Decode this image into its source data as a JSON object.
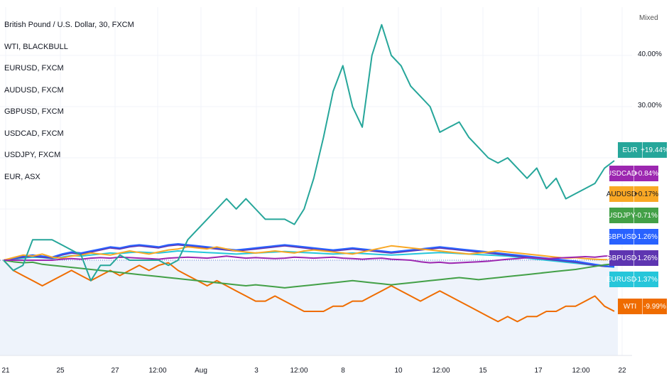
{
  "legend": [
    "British Pound / U.S. Dollar, 30, FXCM",
    "WTI, BLACKBULL",
    "EURUSD, FXCM",
    "AUDUSD, FXCM",
    "GBPUSD, FXCM",
    "USDCAD, FXCM",
    "USDJPY, FXCM",
    "EUR, ASX"
  ],
  "chart_data": {
    "type": "line",
    "scale_label": "Mixed",
    "y_ticks": [
      {
        "label": "40.00%",
        "value": 40
      },
      {
        "label": "30.00%",
        "value": 30
      }
    ],
    "x_ticks": [
      "21",
      "25",
      "27",
      "12:00",
      "Aug",
      "3",
      "12:00",
      "8",
      "10",
      "12:00",
      "15",
      "17",
      "12:00",
      "22"
    ],
    "series": [
      {
        "name": "EUR",
        "color": "#26a69a",
        "last_label": "+19.44%",
        "values": [
          0,
          -2,
          -1,
          4,
          4,
          4,
          3,
          2,
          1,
          -4,
          -1,
          -1,
          1,
          0,
          0,
          0,
          0,
          -1,
          0,
          4,
          6,
          8,
          10,
          12,
          10,
          12,
          10,
          8,
          8,
          8,
          7,
          10,
          16,
          24,
          33,
          38,
          30,
          26,
          40,
          46,
          40,
          38,
          34,
          32,
          30,
          25,
          26,
          27,
          24,
          22,
          20,
          19,
          20,
          18,
          16,
          18,
          14,
          16,
          12,
          13,
          14,
          15,
          18,
          19.44
        ]
      },
      {
        "name": "USDCAD",
        "color": "#9c27b0",
        "last_label": "+0.84%",
        "values": [
          0,
          0,
          0,
          0,
          0,
          0,
          0.2,
          0.3,
          0.2,
          0.4,
          0.5,
          0.4,
          0.6,
          0.5,
          0.4,
          0.3,
          0.2,
          0.4,
          0.5,
          0.6,
          0.5,
          0.4,
          0.6,
          0.8,
          0.6,
          0.4,
          0.5,
          0.4,
          0.3,
          0.4,
          0.6,
          0.5,
          0.4,
          0.5,
          0.6,
          0.4,
          0.3,
          0.2,
          0.3,
          0.4,
          0.2,
          0.1,
          0,
          -0.3,
          -0.5,
          -0.4,
          -0.6,
          -0.5,
          -0.4,
          -0.3,
          -0.2,
          0,
          0.2,
          0.3,
          0.5,
          0.4,
          0.3,
          0.4,
          0.5,
          0.6,
          0.7,
          0.6,
          0.8,
          0.84
        ]
      },
      {
        "name": "AUDUSD",
        "color": "#f9a825",
        "last_label": "+0.17%",
        "values": [
          0,
          0.5,
          1,
          0.8,
          1.2,
          0.6,
          0.4,
          0.8,
          1,
          1.4,
          1.2,
          1,
          1.4,
          1.8,
          1.5,
          1.2,
          1.6,
          2,
          2.2,
          2.6,
          2.4,
          2.2,
          2.6,
          2.2,
          1.8,
          1.6,
          1.4,
          1.6,
          1.8,
          1.6,
          1.4,
          1.8,
          2,
          1.8,
          1.6,
          1.4,
          1.2,
          1.6,
          2,
          2.4,
          2.8,
          2.6,
          2.4,
          2.2,
          2,
          1.8,
          1.6,
          1.4,
          1.2,
          1.4,
          1.6,
          1.8,
          1.6,
          1.4,
          1.2,
          1,
          0.8,
          0.6,
          0.4,
          0.5,
          0.3,
          0.2,
          0.1,
          0.17
        ]
      },
      {
        "name": "USDJPY",
        "color": "#43a047",
        "last_label": "-0.71%",
        "values": [
          0,
          -0.3,
          -0.5,
          -0.4,
          -0.8,
          -1,
          -1.2,
          -1.4,
          -1.6,
          -1.8,
          -2,
          -2.2,
          -2.4,
          -2.6,
          -2.8,
          -3,
          -3.2,
          -3.4,
          -3.6,
          -3.8,
          -4,
          -4.2,
          -4.4,
          -4.6,
          -4.8,
          -5,
          -4.8,
          -5,
          -5.2,
          -5.4,
          -5.2,
          -5,
          -4.8,
          -4.6,
          -4.4,
          -4.2,
          -4,
          -4.2,
          -4.4,
          -4.6,
          -4.8,
          -4.6,
          -4.4,
          -4.2,
          -4,
          -3.8,
          -3.6,
          -3.4,
          -3.6,
          -3.8,
          -3.6,
          -3.4,
          -3.2,
          -3,
          -2.8,
          -2.6,
          -2.4,
          -2.2,
          -2,
          -1.8,
          -1.5,
          -1.2,
          -0.9,
          -0.71
        ]
      },
      {
        "name": "GBPUSD",
        "color": "#2962ff",
        "last_label": "-1.26%",
        "values": [
          0,
          0.4,
          0.8,
          1,
          0.8,
          0.6,
          1.2,
          1.6,
          1.4,
          1.8,
          2.2,
          2.6,
          2.4,
          2.8,
          3,
          2.8,
          2.6,
          3,
          3.2,
          3,
          2.8,
          2.6,
          2.4,
          2.2,
          2,
          2.2,
          2.4,
          2.6,
          2.8,
          3,
          2.8,
          2.6,
          2.4,
          2.2,
          2,
          2.2,
          2.4,
          2.2,
          2,
          1.8,
          1.6,
          1.8,
          2,
          2.2,
          2.4,
          2.6,
          2.4,
          2.2,
          2,
          1.8,
          1.6,
          1.4,
          1.2,
          1,
          0.8,
          0.6,
          0.4,
          0.2,
          0,
          -0.2,
          -0.5,
          -0.8,
          -1.1,
          -1.26
        ]
      },
      {
        "name": "GBPUSD",
        "color": "#5e35b1",
        "last_label": "-1.26%",
        "values": [
          0,
          0.3,
          0.6,
          0.8,
          0.6,
          0.4,
          1,
          1.4,
          1.2,
          1.6,
          2,
          2.4,
          2.2,
          2.6,
          2.8,
          2.6,
          2.4,
          2.8,
          3,
          2.8,
          2.6,
          2.4,
          2.2,
          2,
          1.8,
          2,
          2.2,
          2.4,
          2.6,
          2.8,
          2.6,
          2.4,
          2.2,
          2,
          1.8,
          2,
          2.2,
          2,
          1.8,
          1.6,
          1.4,
          1.6,
          1.8,
          2,
          2.2,
          2.4,
          2.2,
          2,
          1.8,
          1.6,
          1.4,
          1.2,
          1,
          0.8,
          0.6,
          0.4,
          0.2,
          0,
          -0.2,
          -0.4,
          -0.7,
          -1,
          -1.2,
          -1.26
        ]
      },
      {
        "name": "EURUSD",
        "color": "#26c6da",
        "last_label": "-1.37%",
        "values": [
          0,
          0.2,
          0.4,
          0.6,
          0.5,
          0.3,
          0.6,
          0.9,
          0.8,
          1,
          1.2,
          1.4,
          1.3,
          1.5,
          1.6,
          1.5,
          1.4,
          1.6,
          1.8,
          1.7,
          1.6,
          1.5,
          1.4,
          1.3,
          1.2,
          1.3,
          1.4,
          1.5,
          1.6,
          1.7,
          1.6,
          1.5,
          1.4,
          1.3,
          1.2,
          1.3,
          1.4,
          1.3,
          1.2,
          1.1,
          1,
          1.1,
          1.2,
          1.3,
          1.4,
          1.5,
          1.4,
          1.3,
          1.2,
          1.1,
          1,
          0.9,
          0.8,
          0.6,
          0.4,
          0.2,
          0,
          -0.2,
          -0.4,
          -0.6,
          -0.8,
          -1,
          -1.2,
          -1.37
        ]
      },
      {
        "name": "WTI",
        "color": "#ef6c00",
        "last_label": "-9.99%",
        "values": [
          0,
          -2,
          -3,
          -4,
          -5,
          -4,
          -3,
          -2,
          -3,
          -4,
          -3,
          -2,
          -3,
          -2,
          -1,
          -2,
          -1,
          -0.5,
          -2,
          -3,
          -4,
          -5,
          -4,
          -5,
          -6,
          -7,
          -8,
          -8,
          -7,
          -8,
          -9,
          -10,
          -10,
          -10,
          -9,
          -9,
          -8,
          -8,
          -7,
          -6,
          -5,
          -6,
          -7,
          -8,
          -7,
          -6,
          -7,
          -8,
          -9,
          -10,
          -11,
          -12,
          -11,
          -12,
          -11,
          -11,
          -10,
          -10,
          -9,
          -9,
          -8,
          -7,
          -9,
          -9.99
        ]
      }
    ]
  }
}
